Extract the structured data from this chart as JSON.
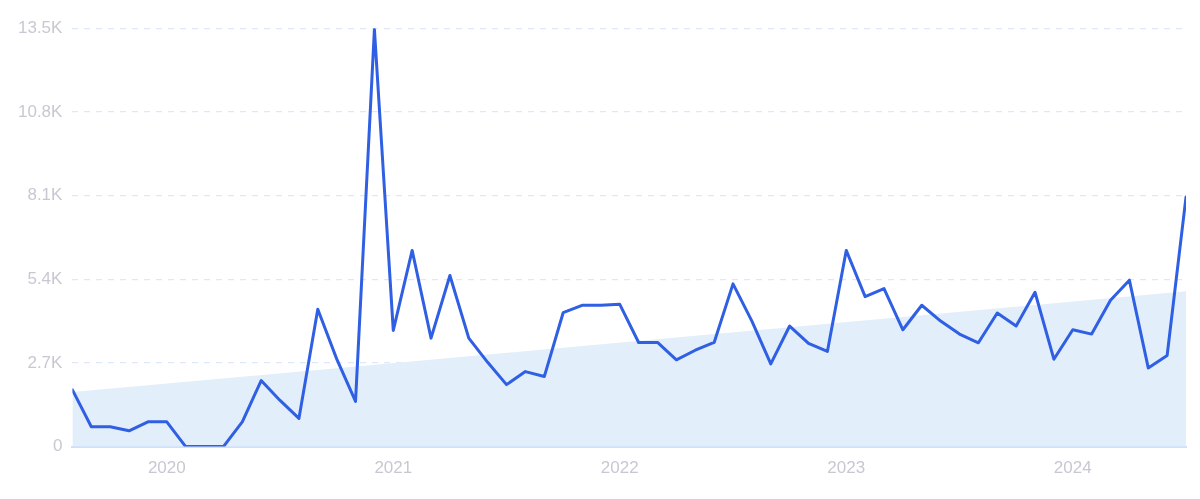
{
  "chart_data": {
    "type": "line",
    "xlim": [
      "2019-08",
      "2024-07"
    ],
    "xticks": [
      {
        "value": "2020-01",
        "label": "2020"
      },
      {
        "value": "2021-01",
        "label": "2021"
      },
      {
        "value": "2022-01",
        "label": "2022"
      },
      {
        "value": "2023-01",
        "label": "2023"
      },
      {
        "value": "2024-01",
        "label": "2024"
      }
    ],
    "ylim": [
      0,
      13500
    ],
    "yticks": [
      0,
      {
        "value": 2700,
        "label": "2.7K"
      },
      {
        "value": 5400,
        "label": "5.4K"
      },
      {
        "value": 8100,
        "label": "8.1K"
      },
      {
        "value": 10800,
        "label": "10.8K"
      },
      {
        "value": 13500,
        "label": "13.5K"
      }
    ],
    "grid": "y",
    "legend": false,
    "marker": "none",
    "series": [
      {
        "type": "area",
        "color": "#e3eefb",
        "x": [
          "2019-08",
          "2024-07"
        ],
        "values": [
          1760,
          5010
        ]
      },
      {
        "type": "line",
        "color": "#2f5fe3",
        "x": [
          "2019-08",
          "2019-09",
          "2019-10",
          "2019-11",
          "2019-12",
          "2020-01",
          "2020-02",
          "2020-03",
          "2020-04",
          "2020-05",
          "2020-06",
          "2020-07",
          "2020-08",
          "2020-09",
          "2020-10",
          "2020-11",
          "2020-12",
          "2021-01",
          "2021-02",
          "2021-03",
          "2021-04",
          "2021-05",
          "2021-06",
          "2021-07",
          "2021-08",
          "2021-09",
          "2021-10",
          "2021-11",
          "2021-12",
          "2022-01",
          "2022-02",
          "2022-03",
          "2022-04",
          "2022-05",
          "2022-06",
          "2022-07",
          "2022-08",
          "2022-09",
          "2022-10",
          "2022-11",
          "2022-12",
          "2023-01",
          "2023-02",
          "2023-03",
          "2023-04",
          "2023-05",
          "2023-06",
          "2023-07",
          "2023-08",
          "2023-09",
          "2023-10",
          "2023-11",
          "2023-12",
          "2024-01",
          "2024-02",
          "2024-03",
          "2024-04",
          "2024-05",
          "2024-06",
          "2024-07"
        ],
        "values": [
          1830,
          640,
          640,
          510,
          800,
          800,
          0,
          0,
          0,
          800,
          2130,
          1490,
          910,
          4430,
          2830,
          1460,
          13460,
          3750,
          6330,
          3500,
          5520,
          3500,
          2720,
          2000,
          2420,
          2260,
          4320,
          4560,
          4560,
          4590,
          3360,
          3360,
          2800,
          3110,
          3360,
          5250,
          4050,
          2670,
          3890,
          3330,
          3070,
          6330,
          4840,
          5100,
          3770,
          4560,
          4050,
          3630,
          3350,
          4310,
          3890,
          4980,
          2820,
          3770,
          3630,
          4720,
          5370,
          2540,
          2940,
          8050
        ]
      }
    ]
  }
}
